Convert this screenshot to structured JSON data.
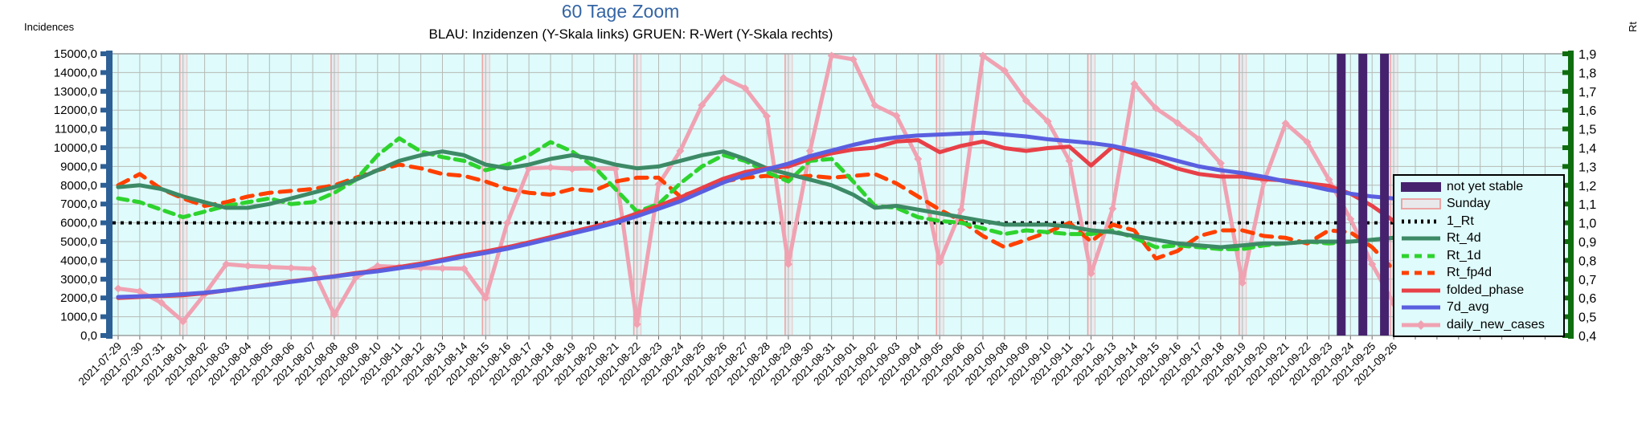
{
  "header": {
    "title": "60 Tage Zoom",
    "subtitle": "BLAU: Inzidenzen (Y-Skala links)    GRUEN: R-Wert (Y-Skala rechts)"
  },
  "colors": {
    "title": "#3465a4",
    "plot_background": "#dffbfb",
    "grid": "#b6bab6",
    "left_axis_bar": "#2d6096",
    "right_axis_bar": "#0e6e0e",
    "not_yet_stable": "#46226e",
    "sunday_fill": "#e9e9ec",
    "sunday_border": "#eda4a4"
  },
  "legend": {
    "items": [
      {
        "label": "not yet stable",
        "style": "bar",
        "color": "#46226e"
      },
      {
        "label": "Sunday",
        "style": "band",
        "color": "#e9e9ec",
        "border": "#eda4a4"
      },
      {
        "label": "1_Rt",
        "style": "dotted",
        "color": "#000000"
      },
      {
        "label": "Rt_4d",
        "style": "solid",
        "color": "#3d8a66"
      },
      {
        "label": "Rt_1d",
        "style": "dashed",
        "color": "#2ed32e"
      },
      {
        "label": "Rt_fp4d",
        "style": "dashed",
        "color": "#ff4000"
      },
      {
        "label": "folded_phase",
        "style": "solid",
        "color": "#e84048"
      },
      {
        "label": "7d_avg",
        "style": "solid",
        "color": "#5a5fe0"
      },
      {
        "label": "daily_new_cases",
        "style": "marker-line",
        "color": "#f0a2b2"
      }
    ]
  },
  "chart_data": {
    "type": "line",
    "title": "60 Tage Zoom",
    "xlabel": "",
    "y_left": {
      "label": "Incidences",
      "min": 0,
      "max": 15000,
      "step": 1000,
      "tick_labels": [
        "15000,0",
        "14000,0",
        "13000,0",
        "12000,0",
        "11000,0",
        "10000,0",
        "9000,0",
        "8000,0",
        "7000,0",
        "6000,0",
        "5000,0",
        "4000,0",
        "3000,0",
        "2000,0",
        "1000,0",
        "0,0"
      ]
    },
    "y_right": {
      "label": "Rt",
      "min": 0.4,
      "max": 1.9,
      "step": 0.1,
      "tick_labels": [
        "1,9",
        "1,8",
        "1,7",
        "1,6",
        "1,5",
        "1,4",
        "1,3",
        "1,2",
        "1,1",
        "1,0",
        "0,9",
        "0,8",
        "0,7",
        "0,6",
        "0,5",
        "0,4"
      ]
    },
    "reference_line": {
      "name": "1_Rt",
      "axis": "right",
      "value": 1.0
    },
    "sunday_indices": [
      3,
      10,
      17,
      24,
      31,
      38,
      45,
      52,
      59
    ],
    "not_yet_stable_indices": [
      57,
      58,
      59
    ],
    "categories": [
      "2021-07-29",
      "2021-07-30",
      "2021-07-31",
      "2021-08-01",
      "2021-08-02",
      "2021-08-03",
      "2021-08-04",
      "2021-08-05",
      "2021-08-06",
      "2021-08-07",
      "2021-08-08",
      "2021-08-09",
      "2021-08-10",
      "2021-08-11",
      "2021-08-12",
      "2021-08-13",
      "2021-08-14",
      "2021-08-15",
      "2021-08-16",
      "2021-08-17",
      "2021-08-18",
      "2021-08-19",
      "2021-08-20",
      "2021-08-21",
      "2021-08-22",
      "2021-08-23",
      "2021-08-24",
      "2021-08-25",
      "2021-08-26",
      "2021-08-27",
      "2021-08-28",
      "2021-08-29",
      "2021-08-30",
      "2021-08-31",
      "2021-09-01",
      "2021-09-02",
      "2021-09-03",
      "2021-09-04",
      "2021-09-05",
      "2021-09-06",
      "2021-09-07",
      "2021-09-08",
      "2021-09-09",
      "2021-09-10",
      "2021-09-11",
      "2021-09-12",
      "2021-09-13",
      "2021-09-14",
      "2021-09-15",
      "2021-09-16",
      "2021-09-17",
      "2021-09-18",
      "2021-09-19",
      "2021-09-20",
      "2021-09-21",
      "2021-09-22",
      "2021-09-23",
      "2021-09-24",
      "2021-09-25",
      "2021-09-26"
    ],
    "series": [
      {
        "name": "daily_new_cases",
        "axis": "left",
        "color": "#f0a2b2",
        "width": 5,
        "dash": "",
        "marker": true,
        "values": [
          2500,
          2350,
          1750,
          750,
          2200,
          3800,
          3700,
          3650,
          3600,
          3550,
          1100,
          3100,
          3700,
          3650,
          3600,
          3580,
          3560,
          2000,
          6000,
          8900,
          8950,
          8870,
          8900,
          8870,
          600,
          8050,
          9830,
          12260,
          13720,
          13170,
          11680,
          3800,
          9830,
          14900,
          14700,
          12260,
          11700,
          9400,
          3900,
          6700,
          14900,
          14100,
          12500,
          11400,
          9300,
          3300,
          6750,
          13400,
          12100,
          11320,
          10450,
          9170,
          2800,
          8200,
          11300,
          10300,
          8300,
          6200,
          3800,
          1700
        ]
      },
      {
        "name": "Rt_fp4d",
        "axis": "right",
        "color": "#ff4000",
        "width": 5,
        "dash": "14,10",
        "marker": false,
        "values": [
          1.2,
          1.26,
          1.18,
          1.13,
          1.09,
          1.11,
          1.14,
          1.16,
          1.17,
          1.18,
          1.2,
          1.24,
          1.28,
          1.31,
          1.29,
          1.26,
          1.25,
          1.22,
          1.18,
          1.16,
          1.15,
          1.18,
          1.17,
          1.22,
          1.24,
          1.24,
          1.14,
          1.18,
          1.22,
          1.24,
          1.25,
          1.24,
          1.25,
          1.24,
          1.25,
          1.26,
          1.21,
          1.14,
          1.07,
          1.01,
          0.93,
          0.87,
          0.91,
          0.95,
          1.0,
          0.9,
          0.99,
          0.96,
          0.81,
          0.85,
          0.93,
          0.96,
          0.96,
          0.93,
          0.92,
          0.89,
          0.96,
          0.95,
          0.87,
          0.75
        ]
      },
      {
        "name": "Rt_1d",
        "axis": "right",
        "color": "#2ed32e",
        "width": 5,
        "dash": "12,8",
        "marker": false,
        "values": [
          1.13,
          1.11,
          1.07,
          1.03,
          1.06,
          1.09,
          1.11,
          1.13,
          1.1,
          1.11,
          1.16,
          1.23,
          1.36,
          1.45,
          1.38,
          1.35,
          1.33,
          1.28,
          1.31,
          1.36,
          1.43,
          1.38,
          1.3,
          1.18,
          1.06,
          1.1,
          1.21,
          1.3,
          1.36,
          1.33,
          1.27,
          1.22,
          1.33,
          1.34,
          1.22,
          1.09,
          1.08,
          1.03,
          1.01,
          1.0,
          0.97,
          0.94,
          0.96,
          0.95,
          0.94,
          0.94,
          0.96,
          0.92,
          0.87,
          0.88,
          0.87,
          0.86,
          0.86,
          0.88,
          0.89,
          0.9,
          0.89,
          0.9,
          0.91,
          0.92
        ]
      },
      {
        "name": "Rt_4d",
        "axis": "right",
        "color": "#3d8a66",
        "width": 5,
        "dash": "",
        "marker": false,
        "values": [
          1.19,
          1.2,
          1.18,
          1.14,
          1.11,
          1.08,
          1.08,
          1.1,
          1.13,
          1.16,
          1.19,
          1.23,
          1.28,
          1.33,
          1.36,
          1.38,
          1.36,
          1.31,
          1.29,
          1.31,
          1.34,
          1.36,
          1.34,
          1.31,
          1.29,
          1.3,
          1.33,
          1.36,
          1.38,
          1.34,
          1.29,
          1.26,
          1.23,
          1.2,
          1.15,
          1.08,
          1.09,
          1.07,
          1.05,
          1.03,
          1.01,
          0.99,
          0.99,
          0.99,
          0.98,
          0.96,
          0.95,
          0.93,
          0.91,
          0.89,
          0.88,
          0.87,
          0.88,
          0.89,
          0.89,
          0.9,
          0.9,
          0.9,
          0.91,
          0.92
        ]
      },
      {
        "name": "folded_phase",
        "axis": "left",
        "color": "#e84048",
        "width": 5,
        "dash": "",
        "marker": false,
        "values": [
          2000,
          2050,
          2100,
          2150,
          2250,
          2400,
          2560,
          2720,
          2880,
          3020,
          3160,
          3330,
          3470,
          3650,
          3830,
          4050,
          4280,
          4480,
          4700,
          4960,
          5240,
          5520,
          5800,
          6100,
          6500,
          6900,
          7350,
          7850,
          8350,
          8700,
          8900,
          9000,
          9400,
          9700,
          9900,
          10000,
          10330,
          10400,
          9760,
          10100,
          10330,
          9980,
          9830,
          9980,
          10050,
          9050,
          10050,
          9680,
          9320,
          8890,
          8600,
          8460,
          8460,
          8320,
          8250,
          8100,
          7970,
          7550,
          6900,
          6100
        ]
      },
      {
        "name": "7d_avg",
        "axis": "left",
        "color": "#5a5fe0",
        "width": 5,
        "dash": "",
        "marker": false,
        "values": [
          2050,
          2090,
          2130,
          2200,
          2280,
          2400,
          2550,
          2700,
          2860,
          3000,
          3140,
          3290,
          3420,
          3580,
          3760,
          3980,
          4200,
          4400,
          4620,
          4880,
          5150,
          5430,
          5700,
          6000,
          6350,
          6750,
          7150,
          7650,
          8150,
          8550,
          8850,
          9150,
          9550,
          9850,
          10150,
          10400,
          10550,
          10650,
          10700,
          10750,
          10800,
          10700,
          10600,
          10450,
          10350,
          10250,
          10100,
          9850,
          9600,
          9300,
          9000,
          8800,
          8650,
          8450,
          8200,
          8000,
          7750,
          7550,
          7400,
          7300
        ]
      }
    ],
    "legend_position": "right-inside",
    "grid": true
  }
}
